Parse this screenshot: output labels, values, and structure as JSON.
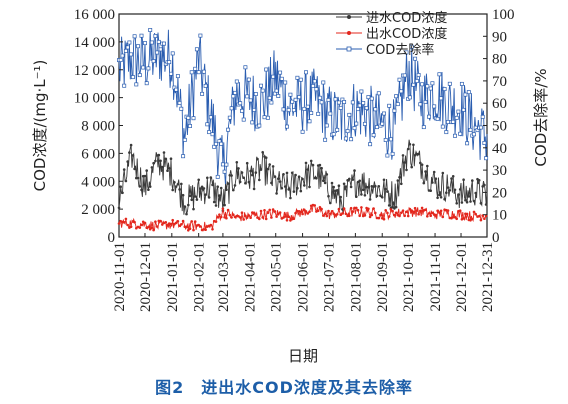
{
  "caption": "图2　进出水COD浓度及其去除率",
  "chart_data": {
    "type": "line",
    "title": "",
    "xlabel": "日期",
    "ylabel_left": "COD浓度/(mg·L⁻¹)",
    "ylabel_right": "COD去除率/%",
    "ylim_left": [
      0,
      16000
    ],
    "ylim_right": [
      0,
      100
    ],
    "yticks_left": [
      "0",
      "2 000",
      "4 000",
      "6 000",
      "8 000",
      "10 000",
      "12 000",
      "14 000",
      "16 000"
    ],
    "yticks_right": [
      "0",
      "10",
      "20",
      "30",
      "40",
      "50",
      "60",
      "70",
      "80",
      "90",
      "100"
    ],
    "xticks": [
      "2020-11-01",
      "2020-12-01",
      "2021-01-01",
      "2021-02-01",
      "2021-03-01",
      "2021-04-01",
      "2021-05-01",
      "2021-06-01",
      "2021-07-01",
      "2021-08-01",
      "2021-09-01",
      "2021-10-01",
      "2021-11-01",
      "2021-12-01",
      "2021-12-31"
    ],
    "legend_position": "top-right",
    "x_dates": [
      "2020-11-01",
      "2020-11-16",
      "2020-12-01",
      "2020-12-16",
      "2021-01-01",
      "2021-01-16",
      "2021-02-01",
      "2021-02-15",
      "2021-03-01",
      "2021-03-16",
      "2021-04-01",
      "2021-04-16",
      "2021-05-01",
      "2021-05-16",
      "2021-06-01",
      "2021-06-16",
      "2021-07-01",
      "2021-07-16",
      "2021-08-01",
      "2021-08-16",
      "2021-09-01",
      "2021-09-16",
      "2021-10-01",
      "2021-10-16",
      "2021-11-01",
      "2021-11-16",
      "2021-12-01",
      "2021-12-16",
      "2021-12-31"
    ],
    "series": [
      {
        "name": "进水COD浓度",
        "axis": "left",
        "color": "#3a3a3a",
        "values": [
          2500,
          5800,
          3500,
          5400,
          4600,
          2500,
          3200,
          3600,
          2500,
          4500,
          4300,
          5000,
          3800,
          3500,
          4300,
          4600,
          3500,
          2500,
          4000,
          3800,
          3300,
          3000,
          6300,
          5200,
          3800,
          3600,
          3000,
          3300,
          2900
        ]
      },
      {
        "name": "出水COD浓度",
        "axis": "left",
        "color": "#e3271d",
        "values": [
          1000,
          1000,
          900,
          800,
          900,
          800,
          800,
          700,
          1800,
          1400,
          1500,
          1600,
          1700,
          1500,
          1800,
          2000,
          1600,
          1700,
          1800,
          1800,
          1600,
          1700,
          1800,
          1800,
          1600,
          1700,
          1600,
          1500,
          1600
        ]
      },
      {
        "name": "COD去除率",
        "axis": "right",
        "color": "#2a5db0",
        "values": [
          75,
          80,
          78,
          82,
          80,
          45,
          80,
          55,
          30,
          65,
          62,
          60,
          72,
          58,
          60,
          62,
          55,
          52,
          58,
          55,
          50,
          48,
          75,
          62,
          65,
          60,
          58,
          50,
          45
        ]
      }
    ]
  }
}
